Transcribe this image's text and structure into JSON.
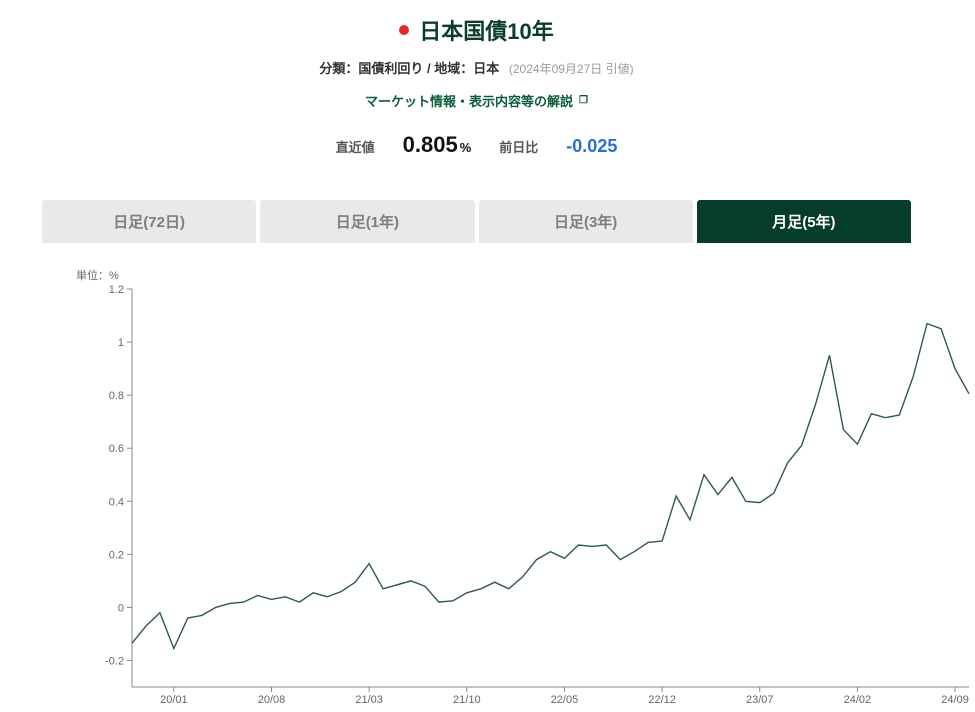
{
  "colors": {
    "title": "#0b3d2c",
    "red_dot": "#e22828",
    "subtitle_main": "#333333",
    "subtitle_date": "#9a9a9a",
    "info_link": "#0b5d3b",
    "label": "#555555",
    "value_main": "#111111",
    "value_change": "#2a6fd6",
    "tab_inactive_bg": "#e9e9e9",
    "tab_inactive_text": "#7d7d7d",
    "tab_active_bg": "#063d2a",
    "tab_active_text": "#ffffff",
    "axis": "#888888",
    "tick_text": "#666666",
    "series": "#2f5a4a",
    "bg": "#ffffff"
  },
  "header": {
    "title": "日本国債10年",
    "subtitle_main": "分類：国債利回り / 地域：日本",
    "subtitle_date": "(2024年09月27日 引値)",
    "info_link": "マーケット情報・表示内容等の解説"
  },
  "values": {
    "latest_label": "直近値",
    "latest_value": "0.805",
    "latest_unit": "%",
    "change_label": "前日比",
    "change_value": "-0.025"
  },
  "tabs": [
    {
      "label": "日足(72日)",
      "active": false
    },
    {
      "label": "日足(1年)",
      "active": false
    },
    {
      "label": "日足(3年)",
      "active": false
    },
    {
      "label": "月足(5年)",
      "active": true
    }
  ],
  "chart": {
    "type": "line",
    "unit_label": "単位：%",
    "y": {
      "min": -0.3,
      "max": 1.2,
      "ticks": [
        -0.2,
        0,
        0.2,
        0.4,
        0.6,
        0.8,
        1.0,
        1.2
      ],
      "tick_labels": [
        "-0.2",
        "0",
        "0.2",
        "0.4",
        "0.6",
        "0.8",
        "1",
        "1.2"
      ]
    },
    "x": {
      "min": 0,
      "max": 60,
      "ticks": [
        3,
        10,
        17,
        24,
        31,
        38,
        45,
        52,
        59
      ],
      "tick_labels": [
        "20/01",
        "20/08",
        "21/03",
        "21/10",
        "22/05",
        "22/12",
        "23/07",
        "24/02",
        "24/09"
      ]
    },
    "series": {
      "y": [
        -0.135,
        -0.07,
        -0.02,
        -0.155,
        -0.04,
        -0.03,
        0.0,
        0.015,
        0.02,
        0.045,
        0.03,
        0.04,
        0.02,
        0.055,
        0.04,
        0.06,
        0.095,
        0.165,
        0.07,
        0.085,
        0.1,
        0.08,
        0.02,
        0.025,
        0.055,
        0.07,
        0.095,
        0.07,
        0.115,
        0.18,
        0.21,
        0.185,
        0.235,
        0.23,
        0.235,
        0.18,
        0.21,
        0.245,
        0.25,
        0.42,
        0.33,
        0.5,
        0.425,
        0.49,
        0.4,
        0.395,
        0.43,
        0.545,
        0.61,
        0.765,
        0.95,
        0.67,
        0.615,
        0.73,
        0.715,
        0.725,
        0.87,
        1.07,
        1.05,
        0.9,
        0.805
      ]
    },
    "style": {
      "title_fontsize": 22,
      "tick_fontsize": 11,
      "line_width": 1.4,
      "axis_width": 1
    }
  }
}
